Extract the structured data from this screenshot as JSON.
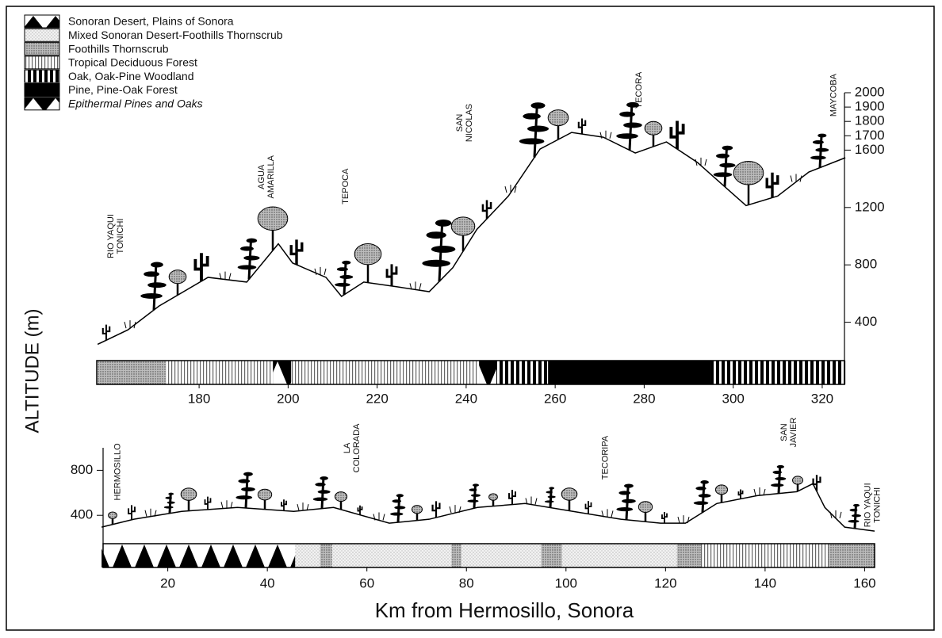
{
  "chart_data": [
    {
      "type": "area",
      "ylabel": "ALTITUDE (m)",
      "legend": [
        "Sonoran Desert, Plains of Sonora",
        "Mixed Sonoran Desert-Foothills Thornscrub",
        "Foothills Thornscrub",
        "Tropical Deciduous Forest",
        "Oak, Oak-Pine Woodland",
        "Pine, Pine-Oak Forest",
        "Epithermal Pines and Oaks"
      ],
      "x": [
        157.2,
        164,
        171,
        182,
        190.7,
        197.8,
        201,
        208.5,
        212,
        217,
        224.5,
        231.7,
        237,
        242.4,
        249.5,
        256.6,
        263.7,
        270.8,
        278,
        285,
        292,
        302.9,
        310,
        317,
        325.2
      ],
      "values": [
        246,
        347,
        513,
        713,
        680,
        947,
        813,
        713,
        580,
        680,
        647,
        613,
        780,
        1047,
        1280,
        1607,
        1723,
        1690,
        1580,
        1657,
        1513,
        1213,
        1280,
        1447,
        1547
      ],
      "xlim": [
        157,
        325
      ],
      "xticks": [
        180,
        200,
        220,
        240,
        260,
        280,
        300,
        320
      ],
      "ylim": [
        0,
        2000
      ],
      "yticks": [
        400,
        800,
        1200,
        1600,
        1700,
        1800,
        1900,
        2000
      ],
      "bands": [
        {
          "zone": "Foothills Thornscrub",
          "from": 157.2,
          "to": 172.5
        },
        {
          "zone": "Tropical Deciduous Forest",
          "from": 172.5,
          "to": 196.6
        },
        {
          "zone": "Epithermal Pines and Oaks",
          "from": 196.6,
          "to": 200.7
        },
        {
          "zone": "Tropical Deciduous Forest",
          "from": 200.7,
          "to": 242.9
        },
        {
          "zone": "Epithermal Pines and Oaks",
          "from": 242.9,
          "to": 246.8
        },
        {
          "zone": "Oak, Oak-Pine Woodland",
          "from": 246.8,
          "to": 258.4
        },
        {
          "zone": "Pine, Pine-Oak Forest",
          "from": 258.4,
          "to": 294.9
        },
        {
          "zone": "Oak, Oak-Pine Woodland",
          "from": 294.9,
          "to": 325.2
        }
      ],
      "annotations": [
        {
          "lines": [
            "RIO YAQUI",
            "TONICHI"
          ],
          "x": 161.3,
          "y": 1000
        },
        {
          "lines": [
            "AGUA",
            "AMARILLA"
          ],
          "x": 195.1,
          "y": 1413
        },
        {
          "lines": [
            "TEPOCA"
          ],
          "x": 213,
          "y": 1347
        },
        {
          "lines": [
            "SAN",
            "NICOLAS"
          ],
          "x": 239.7,
          "y": 1790
        },
        {
          "lines": [
            "YECORA"
          ],
          "x": 278.9,
          "y": 2017
        },
        {
          "lines": [
            "MAYCOBA"
          ],
          "x": 322.6,
          "y": 1983
        }
      ]
    },
    {
      "type": "area",
      "xlabel": "Km from Hermosillo, Sonora",
      "x": [
        6.7,
        13.2,
        22.8,
        34,
        45.3,
        53.3,
        64.5,
        72.5,
        82.2,
        91.8,
        101.4,
        111,
        119,
        124,
        130.3,
        138.4,
        146.4,
        149.6,
        152,
        156,
        162
      ],
      "values": [
        295,
        365,
        435,
        470,
        435,
        470,
        330,
        365,
        470,
        505,
        435,
        365,
        330,
        330,
        505,
        575,
        610,
        681,
        470,
        295,
        260
      ],
      "xlim": [
        7,
        162
      ],
      "xticks": [
        20,
        40,
        60,
        80,
        100,
        120,
        140,
        160
      ],
      "ylim": [
        0,
        1000
      ],
      "yticks": [
        400,
        800
      ],
      "bands": [
        {
          "zone": "Sonoran Desert, Plains of Sonora",
          "from": 6.7,
          "to": 45.6
        },
        {
          "zone": "Mixed Sonoran Desert-Foothills Thornscrub",
          "from": 45.6,
          "to": 50.6
        },
        {
          "zone": "Foothills Thornscrub",
          "from": 50.6,
          "to": 53
        },
        {
          "zone": "Mixed Sonoran Desert-Foothills Thornscrub",
          "from": 53,
          "to": 77
        },
        {
          "zone": "Foothills Thornscrub",
          "from": 77,
          "to": 79
        },
        {
          "zone": "Mixed Sonoran Desert-Foothills Thornscrub",
          "from": 79,
          "to": 95
        },
        {
          "zone": "Foothills Thornscrub",
          "from": 95,
          "to": 99.2
        },
        {
          "zone": "Mixed Sonoran Desert-Foothills Thornscrub",
          "from": 99.2,
          "to": 122.3
        },
        {
          "zone": "Foothills Thornscrub",
          "from": 122.3,
          "to": 127.1
        },
        {
          "zone": "Tropical Deciduous Forest",
          "from": 127.1,
          "to": 152.8
        },
        {
          "zone": "Foothills Thornscrub",
          "from": 152.8,
          "to": 162
        }
      ],
      "annotations": [
        {
          "lines": [
            "HERMOSILLO"
          ],
          "x": 10,
          "y": 786
        },
        {
          "lines": [
            "LA",
            "COLORADA"
          ],
          "x": 57,
          "y": 997
        },
        {
          "lines": [
            "TECORIPA"
          ],
          "x": 107.9,
          "y": 912
        },
        {
          "lines": [
            "SAN",
            "JAVIER"
          ],
          "x": 144.8,
          "y": 1137
        },
        {
          "lines": [
            "RIO YAQUI",
            "TONICHI"
          ],
          "x": 161.6,
          "y": 491
        }
      ]
    }
  ]
}
